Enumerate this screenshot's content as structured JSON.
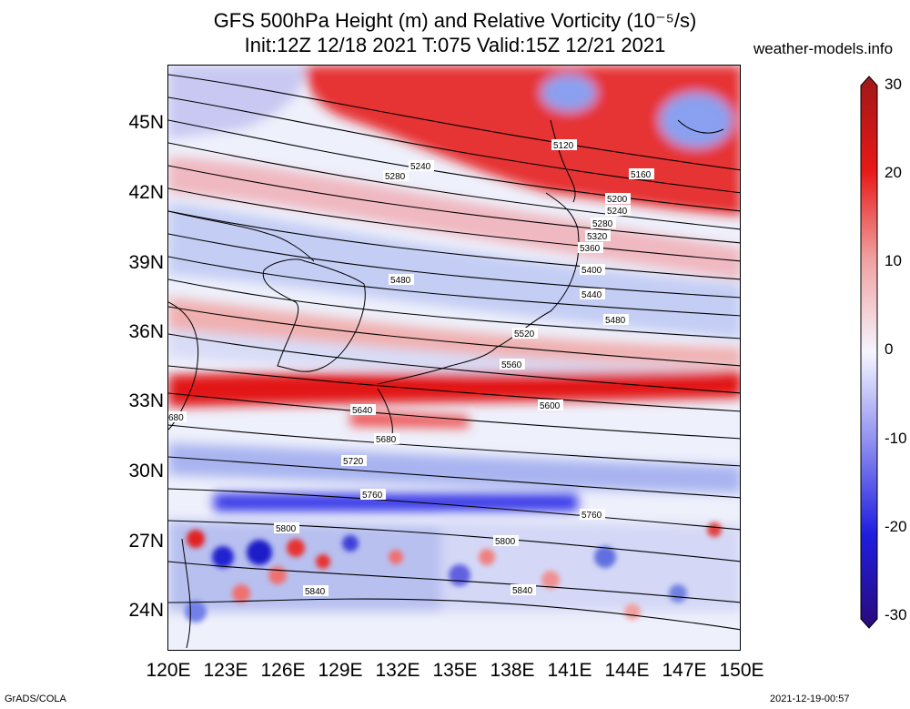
{
  "title": {
    "line1": "GFS 500hPa Height (m) and Relative Vorticity (10⁻⁵/s)",
    "line2": "Init:12Z 12/18 2021 T:075 Valid:15Z 12/21 2021"
  },
  "site": "weather-models.info",
  "map": {
    "lat_labels": [
      "45N",
      "42N",
      "39N",
      "36N",
      "33N",
      "30N",
      "27N",
      "24N"
    ],
    "lon_labels": [
      "120E",
      "123E",
      "126E",
      "129E",
      "132E",
      "135E",
      "138E",
      "141E",
      "144E",
      "147E",
      "150E"
    ],
    "contour_labels": [
      "5120",
      "5160",
      "5200",
      "5240",
      "5240",
      "5280",
      "5280",
      "5320",
      "5360",
      "5400",
      "5440",
      "5480",
      "5480",
      "5520",
      "5560",
      "5600",
      "5640",
      "680",
      "5680",
      "5720",
      "5760",
      "5760",
      "5800",
      "5800",
      "5840",
      "5840"
    ]
  },
  "colorbar": {
    "labels": [
      "30",
      "20",
      "10",
      "0",
      "-10",
      "-20",
      "-30"
    ],
    "colors": [
      "#2a0a7a",
      "#1e1ee0",
      "#8a8af0",
      "#f5f5ff",
      "#f0a0a0",
      "#e81818",
      "#a01818"
    ]
  },
  "footer": {
    "left": "GrADS/COLA",
    "right": "2021-12-19-00:57"
  }
}
